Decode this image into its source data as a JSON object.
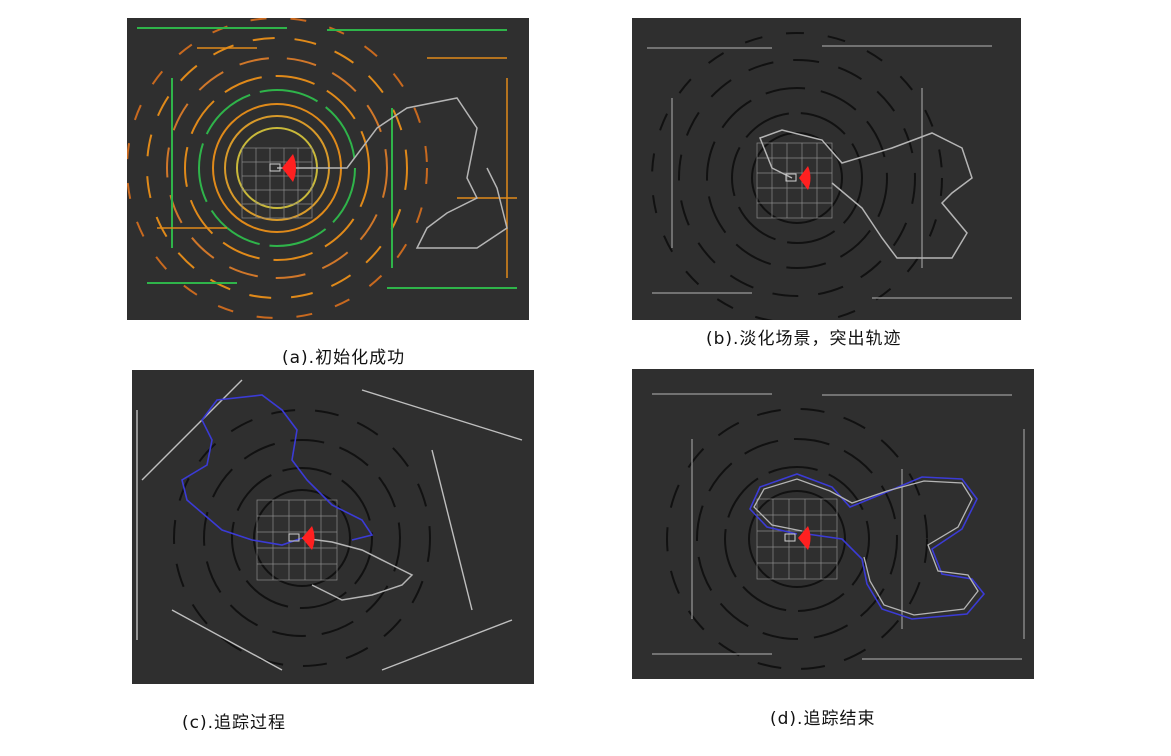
{
  "figure": {
    "panels": [
      {
        "id": "a",
        "caption": "(a).初始化成功"
      },
      {
        "id": "b",
        "caption": "(b).淡化场景，突出轨迹"
      },
      {
        "id": "c",
        "caption": "(c).追踪过程"
      },
      {
        "id": "d",
        "caption": "(d).追踪结束"
      }
    ]
  },
  "colors": {
    "panel_background": "#2f2f2f",
    "grid": "#8a8a8a",
    "robot_marker": "#ff2020",
    "path_gray": "#b5b5b5",
    "path_blue": "#3b3bd6",
    "scan_orange": "#e08a1a",
    "scan_green": "#2fb44a",
    "scan_gray": "#9a9a9a"
  }
}
